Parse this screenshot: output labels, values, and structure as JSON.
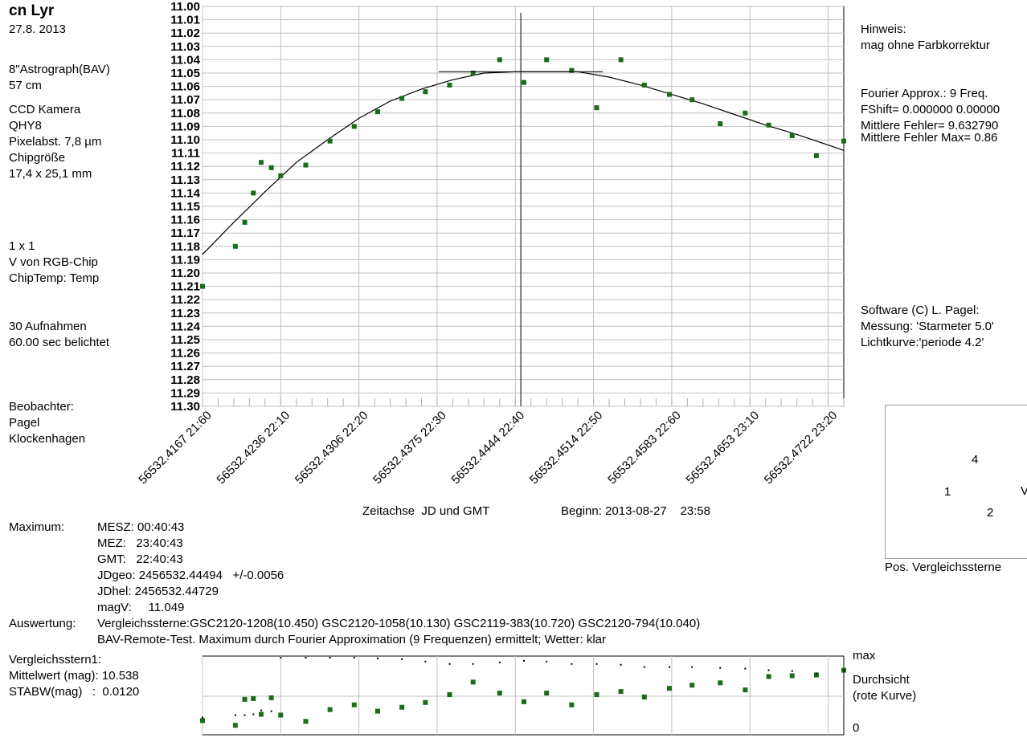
{
  "header": {
    "star": "cn Lyr",
    "date": "27.8. 2013"
  },
  "instrument": {
    "telescope": "8\"Astrograph(BAV)",
    "focal": "57 cm",
    "camera_label": "CCD Kamera",
    "camera": "QHY8",
    "pixel": "Pixelabst. 7,8 µm",
    "chip_label": "Chipgröße",
    "chip": "17,4 x 25,1 mm",
    "binning": "1 x 1",
    "band": "V von RGB-Chip",
    "temp": "ChipTemp: Temp",
    "frames": "30 Aufnahmen",
    "exposure": "60.00 sec belichtet",
    "observer_label": "Beobachter:",
    "observer": "Pagel",
    "site": "Klockenhagen"
  },
  "right_panel": {
    "hint_label": "Hinweis:",
    "hint": "mag ohne Farbkorrektur",
    "fourier": "Fourier Approx.: 9 Freq.",
    "fshift": "FShift= 0.000000 0.00000",
    "mean_err": "Mittlere Fehler= 9.632790",
    "mean_err_max": "Mittlere Fehler Max= 0.86",
    "software": "Software (C) L. Pagel:",
    "measure": "Messung: 'Starmeter 5.0'",
    "lightcurve": "Lichtkurve:'periode 4.2'",
    "pos_caption": "Pos. Vergleichssterne",
    "pos_labels": [
      "4",
      "1",
      "2",
      "V"
    ]
  },
  "axis_caption": {
    "time": "Zeitachse  JD und GMT",
    "begin": "Beginn: 2013-08-27    23:58"
  },
  "maximum": {
    "label": "Maximum:",
    "mesz": "MESZ: 00:40:43",
    "mez": "MEZ:   23:40:43",
    "gmt": "GMT:   22:40:43",
    "jdgeo": "JDgeo: 2456532.44494   +/-0.0056",
    "jdhel": "JDhel: 2456532.44729",
    "magv": "magV:     11.049"
  },
  "evaluation": {
    "label": "Auswertung:",
    "line1": "Vergleichssterne:GSC2120-1208(10.450) GSC2120-1058(10.130) GSC2119-383(10.720) GSC2120-794(10.040)",
    "line2": "BAV-Remote-Test. Maximum durch Fourier Approximation (9 Frequenzen) ermittelt; Wetter: klar"
  },
  "comparison": {
    "title": "Vergleichsstern1:",
    "mean": "Mittelwert (mag): 10.538",
    "stdev": "STABW(mag)   :  0.0120",
    "max_label": "max",
    "transp_label": "Durchsicht",
    "transp_sub": "(rote Kurve)",
    "zero_label": "0"
  },
  "colors": {
    "points": "#1a6b1a",
    "curve": "#000000",
    "grid": "#c0c0c0"
  },
  "chart_data": {
    "type": "scatter",
    "yaxis_reversed": true,
    "ylim": [
      11.0,
      11.3
    ],
    "y_ticks": [
      "11.00",
      "11.01",
      "11.02",
      "11.03",
      "11.04",
      "11.05",
      "11.06",
      "11.07",
      "11.08",
      "11.09",
      "11.10",
      "11.11",
      "11.12",
      "11.13",
      "11.14",
      "11.15",
      "11.16",
      "11.17",
      "11.18",
      "11.19",
      "11.20",
      "11.21",
      "11.22",
      "11.23",
      "11.24",
      "11.25",
      "11.26",
      "11.27",
      "11.28",
      "11.29",
      "11.30"
    ],
    "x_ticks": [
      "56532.4167  21:60",
      "56532.4236  22:10",
      "56532.4306  22:20",
      "56532.4375  22:30",
      "56532.4444  22:40",
      "56532.4514  22:50",
      "56532.4583  22:60",
      "56532.4653  23:10",
      "56532.4722  23:20"
    ],
    "x_tick_minutes": [
      0,
      10,
      20,
      30,
      40,
      50,
      60,
      70,
      80
    ],
    "x_range_minutes": [
      0,
      82
    ],
    "maximum_minute": 40.7,
    "maximum_mag": 11.049,
    "series": [
      {
        "kind": "observed",
        "x_min": [
          0,
          4.2,
          5.4,
          6.5,
          7.5,
          8.8,
          10.0,
          13.2,
          16.3,
          19.4,
          22.4,
          25.5,
          28.5,
          31.6,
          34.6,
          38.0,
          41.1,
          44.0,
          47.2,
          50.4,
          53.5,
          56.5,
          59.7,
          62.6,
          66.2,
          69.4,
          72.4,
          75.4,
          78.5,
          82.0
        ],
        "mag": [
          11.21,
          11.18,
          11.162,
          11.14,
          11.117,
          11.121,
          11.127,
          11.119,
          11.101,
          11.09,
          11.079,
          11.069,
          11.064,
          11.059,
          11.05,
          11.04,
          11.057,
          11.04,
          11.048,
          11.076,
          11.04,
          11.059,
          11.066,
          11.07,
          11.088,
          11.08,
          11.089,
          11.097,
          11.112,
          11.101
        ]
      },
      {
        "kind": "fourier_fit",
        "x_min": [
          0,
          4,
          8,
          12,
          16,
          20,
          24,
          28,
          32,
          36,
          40,
          44,
          48,
          52,
          56,
          60,
          64,
          68,
          72,
          76,
          80,
          82
        ],
        "mag": [
          11.186,
          11.162,
          11.139,
          11.117,
          11.1,
          11.084,
          11.071,
          11.062,
          11.055,
          11.05,
          11.049,
          11.049,
          11.049,
          11.053,
          11.059,
          11.066,
          11.073,
          11.081,
          11.089,
          11.096,
          11.104,
          11.108
        ]
      },
      {
        "kind": "comparison_star",
        "x_min": [
          0,
          4.2,
          5.4,
          6.5,
          7.5,
          8.8,
          10.0,
          13.2,
          16.3,
          19.4,
          22.4,
          25.5,
          28.5,
          31.6,
          34.6,
          38.0,
          41.1,
          44.0,
          47.2,
          50.4,
          53.5,
          56.5,
          59.7,
          62.6,
          66.2,
          69.4,
          72.4,
          75.4,
          78.5,
          82.0
        ],
        "level": [
          0.18,
          0.12,
          0.45,
          0.46,
          0.26,
          0.47,
          0.25,
          0.17,
          0.32,
          0.38,
          0.3,
          0.35,
          0.41,
          0.51,
          0.67,
          0.53,
          0.42,
          0.53,
          0.38,
          0.51,
          0.55,
          0.48,
          0.59,
          0.63,
          0.66,
          0.57,
          0.74,
          0.75,
          0.76,
          0.82
        ]
      },
      {
        "kind": "transparency",
        "x_min": [
          0,
          4.2,
          5.4,
          6.5,
          7.5,
          8.8,
          10.0,
          13.2,
          16.3,
          19.4,
          22.4,
          25.5,
          28.5,
          31.6,
          34.6,
          38.0,
          41.1,
          44.0,
          47.2,
          50.4,
          53.5,
          56.5,
          59.7,
          62.6,
          66.2,
          69.4,
          72.4,
          75.4,
          78.5,
          82.0
        ],
        "level": [
          0.22,
          0.25,
          0.25,
          0.26,
          0.31,
          0.3,
          0.98,
          0.98,
          0.98,
          0.98,
          0.97,
          0.96,
          0.93,
          0.9,
          0.9,
          0.92,
          0.94,
          0.93,
          0.9,
          0.9,
          0.89,
          0.86,
          0.86,
          0.86,
          0.85,
          0.84,
          0.82,
          0.81,
          0.78,
          0.82
        ]
      }
    ]
  }
}
